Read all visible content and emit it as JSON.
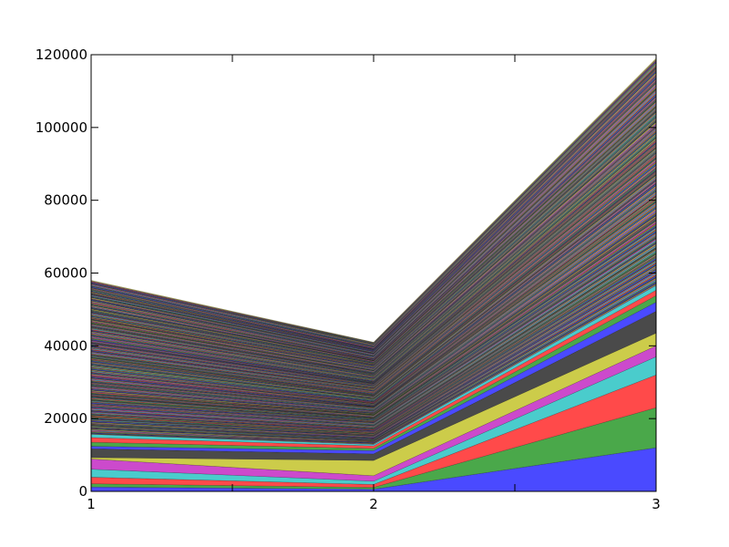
{
  "chart_data": {
    "type": "area",
    "stacked": true,
    "title": "",
    "xlabel": "",
    "ylabel": "",
    "x": [
      1,
      2,
      3
    ],
    "xlim": [
      1,
      3
    ],
    "ylim": [
      0,
      120000
    ],
    "x_ticks": [
      "1",
      "2",
      "3"
    ],
    "y_ticks": [
      "0",
      "20000",
      "40000",
      "60000",
      "80000",
      "100000",
      "120000"
    ],
    "y_tick_values": [
      0,
      20000,
      40000,
      60000,
      80000,
      100000,
      120000
    ],
    "grid": false,
    "legend": "none",
    "layer_count": 300,
    "palette": [
      "#4a4aff",
      "#4aa84a",
      "#ff4a4a",
      "#4acccc",
      "#cc4acc",
      "#cccc4a",
      "#4a4a4a"
    ],
    "stacked_totals": [
      58000,
      41000,
      119000
    ],
    "base_series": [
      {
        "values": [
          1200,
          600,
          12000
        ]
      },
      {
        "values": [
          900,
          500,
          11000
        ]
      },
      {
        "values": [
          1800,
          800,
          9000
        ]
      },
      {
        "values": [
          2200,
          900,
          5000
        ]
      },
      {
        "values": [
          2800,
          1500,
          3000
        ]
      },
      {
        "values": [
          400,
          4200,
          3500
        ]
      },
      {
        "values": [
          2400,
          1800,
          6000
        ]
      },
      {
        "values": [
          700,
          900,
          2500
        ]
      },
      {
        "values": [
          1100,
          600,
          1800
        ]
      },
      {
        "values": [
          1300,
          700,
          1500
        ]
      },
      {
        "values": [
          900,
          400,
          1300
        ]
      }
    ]
  }
}
